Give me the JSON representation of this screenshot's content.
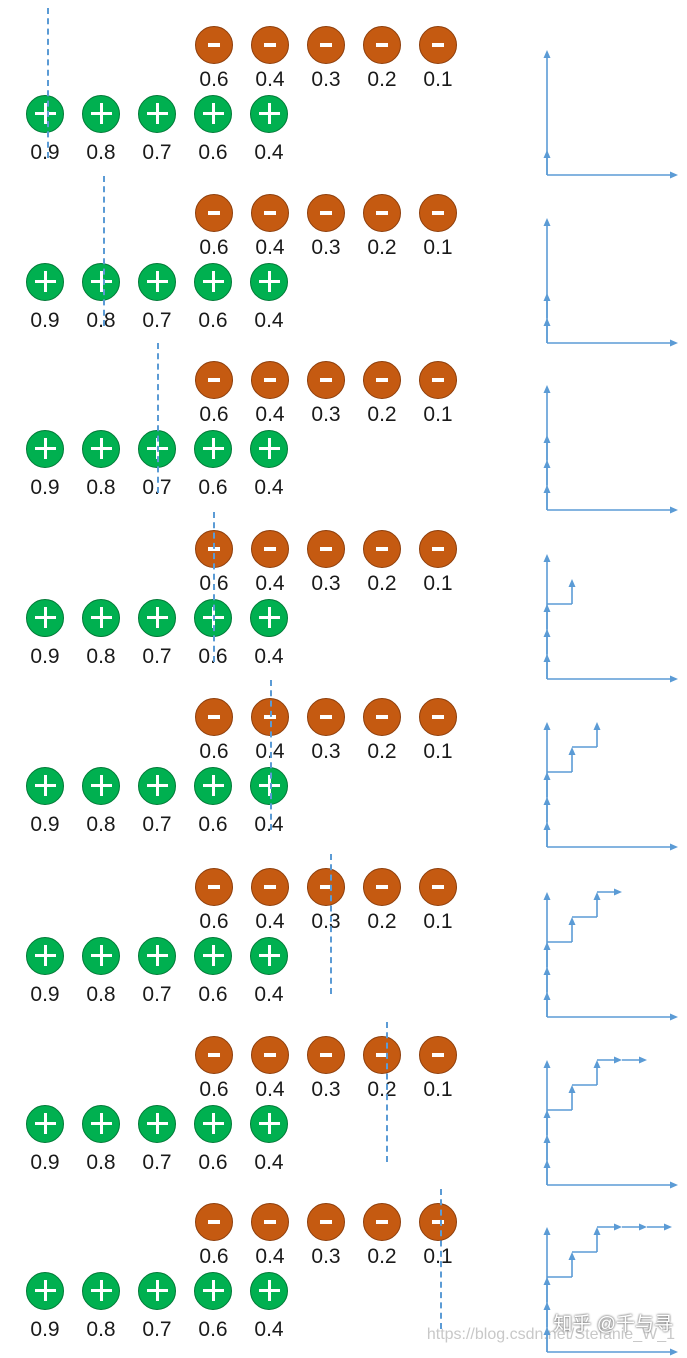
{
  "negatives": {
    "scores": [
      "0.6",
      "0.4",
      "0.3",
      "0.2",
      "0.1"
    ],
    "symbol": "-"
  },
  "positives": {
    "scores": [
      "0.9",
      "0.8",
      "0.7",
      "0.6",
      "0.4"
    ],
    "symbol": "+"
  },
  "colors": {
    "negative_ball": "#c55a11",
    "positive_ball": "#00b050",
    "threshold_line": "#5b9bd5",
    "roc_curve": "#5b9bd5",
    "text": "#1a1a1a"
  },
  "steps": [
    {
      "threshold_after": "0.9",
      "roc_points": [
        [
          0,
          0.2
        ]
      ]
    },
    {
      "threshold_after": "0.8",
      "roc_points": [
        [
          0,
          0.2
        ],
        [
          0,
          0.4
        ]
      ]
    },
    {
      "threshold_after": "0.7",
      "roc_points": [
        [
          0,
          0.2
        ],
        [
          0,
          0.4
        ],
        [
          0,
          0.6
        ]
      ]
    },
    {
      "threshold_after": "0.6",
      "roc_points": [
        [
          0,
          0.2
        ],
        [
          0,
          0.4
        ],
        [
          0,
          0.6
        ],
        [
          0.2,
          0.8
        ]
      ]
    },
    {
      "threshold_after": "0.4",
      "roc_points": [
        [
          0,
          0.2
        ],
        [
          0,
          0.4
        ],
        [
          0,
          0.6
        ],
        [
          0.2,
          0.8
        ],
        [
          0.4,
          1.0
        ]
      ]
    },
    {
      "threshold_after": "0.3",
      "roc_points": [
        [
          0,
          0.2
        ],
        [
          0,
          0.4
        ],
        [
          0,
          0.6
        ],
        [
          0.2,
          0.8
        ],
        [
          0.4,
          1.0
        ],
        [
          0.6,
          1.0
        ]
      ]
    },
    {
      "threshold_after": "0.2",
      "roc_points": [
        [
          0,
          0.2
        ],
        [
          0,
          0.4
        ],
        [
          0,
          0.6
        ],
        [
          0.2,
          0.8
        ],
        [
          0.4,
          1.0
        ],
        [
          0.6,
          1.0
        ],
        [
          0.8,
          1.0
        ]
      ]
    },
    {
      "threshold_after": "0.1",
      "roc_points": [
        [
          0,
          0.2
        ],
        [
          0,
          0.4
        ],
        [
          0,
          0.6
        ],
        [
          0.2,
          0.8
        ],
        [
          0.4,
          1.0
        ],
        [
          0.6,
          1.0
        ],
        [
          0.8,
          1.0
        ],
        [
          1.0,
          1.0
        ]
      ]
    }
  ],
  "watermark": {
    "brand": "知乎 @千与寻",
    "url": "https://blog.csdn.net/Stefanie_W_1"
  }
}
